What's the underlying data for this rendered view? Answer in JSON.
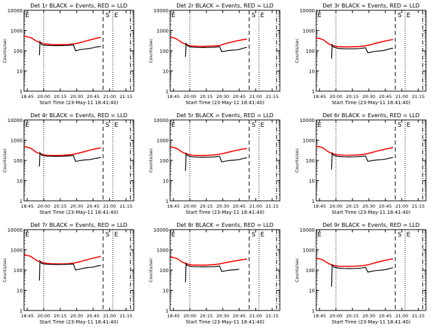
{
  "chart_data": [
    {
      "type": "line",
      "title": "Det 1r BLACK = Events, RED = LLD",
      "xlabel": "Start Time (23-May-11 18:41:40)",
      "ylabel": "Counts/sec",
      "x_ticks": [
        "18:45",
        "20:00",
        "20:15",
        "20:30",
        "20:45",
        "21:00",
        "21:15"
      ],
      "y_ticks": [
        "1",
        "10",
        "100",
        "1000",
        "10000"
      ],
      "ylim": [
        1,
        10000
      ],
      "log_y": true,
      "markers": [
        "S",
        "E"
      ],
      "series": [
        {
          "name": "LLD",
          "color": "#ff0000",
          "x": [
            0,
            3,
            6,
            8,
            10,
            12,
            15,
            18,
            20,
            25,
            30,
            35,
            40,
            45,
            50,
            55,
            60,
            65,
            70
          ],
          "values": [
            520,
            490,
            450,
            390,
            330,
            290,
            250,
            225,
            215,
            205,
            200,
            200,
            205,
            215,
            240,
            290,
            340,
            400,
            460
          ]
        },
        {
          "name": "Events",
          "color": "#000000",
          "x": [
            0,
            14,
            14.5,
            16,
            20,
            25,
            30,
            35,
            40,
            45,
            47,
            50,
            52,
            55,
            60,
            63,
            65,
            67,
            70
          ],
          "values": [
            null,
            60,
            280,
            200,
            185,
            180,
            178,
            180,
            182,
            195,
            100,
            110,
            115,
            120,
            130,
            140,
            150,
            155,
            165
          ]
        }
      ]
    },
    {
      "type": "line",
      "title": "Det 2r BLACK = Events, RED = LLD",
      "xlabel": "Start Time (23-May-11 18:41:40)",
      "ylabel": "Counts/sec",
      "x_ticks": [
        "18:45",
        "20:00",
        "20:15",
        "20:30",
        "20:45",
        "21:00",
        "21:15"
      ],
      "y_ticks": [
        "1",
        "10",
        "100",
        "1000",
        "10000"
      ],
      "ylim": [
        1,
        10000
      ],
      "log_y": true,
      "markers": [
        "S",
        "E"
      ],
      "series": [
        {
          "name": "LLD",
          "color": "#ff0000",
          "x": [
            0,
            3,
            6,
            8,
            10,
            12,
            15,
            18,
            20,
            25,
            30,
            35,
            40,
            45,
            50,
            55,
            60,
            65,
            70
          ],
          "values": [
            480,
            440,
            380,
            320,
            270,
            230,
            200,
            180,
            170,
            165,
            165,
            168,
            172,
            180,
            220,
            260,
            300,
            340,
            380
          ]
        },
        {
          "name": "Events",
          "color": "#000000",
          "x": [
            0,
            14,
            14.5,
            16,
            20,
            25,
            30,
            35,
            40,
            45,
            47,
            50,
            52,
            55,
            60,
            63,
            65,
            67,
            70
          ],
          "values": [
            null,
            50,
            230,
            170,
            150,
            145,
            143,
            145,
            148,
            160,
            90,
            95,
            100,
            105,
            110,
            115,
            125,
            135,
            145
          ]
        }
      ]
    },
    {
      "type": "line",
      "title": "Det 3r BLACK = Events, RED = LLD",
      "xlabel": "Start Time (23-May-11 18:41:40)",
      "ylabel": "Counts/sec",
      "x_ticks": [
        "18:45",
        "20:00",
        "20:15",
        "20:30",
        "20:45",
        "21:00",
        "21:15"
      ],
      "y_ticks": [
        "1",
        "10",
        "100",
        "1000",
        "10000"
      ],
      "ylim": [
        1,
        10000
      ],
      "log_y": true,
      "markers": [
        "S",
        "E"
      ],
      "series": [
        {
          "name": "LLD",
          "color": "#ff0000",
          "x": [
            0,
            3,
            6,
            8,
            10,
            12,
            15,
            18,
            20,
            25,
            30,
            35,
            40,
            45,
            50,
            55,
            60,
            65,
            70
          ],
          "values": [
            420,
            400,
            360,
            300,
            250,
            210,
            180,
            165,
            158,
            155,
            155,
            158,
            162,
            175,
            200,
            240,
            280,
            320,
            360
          ]
        },
        {
          "name": "Events",
          "color": "#000000",
          "x": [
            0,
            14,
            14.5,
            16,
            20,
            25,
            30,
            35,
            40,
            45,
            47,
            50,
            52,
            55,
            60,
            63,
            65,
            67,
            70
          ],
          "values": [
            null,
            40,
            200,
            150,
            130,
            125,
            123,
            125,
            128,
            140,
            80,
            85,
            90,
            95,
            100,
            108,
            115,
            125,
            135
          ]
        }
      ]
    },
    {
      "type": "line",
      "title": "Det 4r BLACK = Events, RED = LLD",
      "xlabel": "Start Time (23-May-11 18:41:40)",
      "ylabel": "Counts/sec",
      "x_ticks": [
        "18:45",
        "20:00",
        "20:15",
        "20:30",
        "20:45",
        "21:00",
        "21:15"
      ],
      "y_ticks": [
        "1",
        "10",
        "100",
        "1000",
        "10000"
      ],
      "ylim": [
        1,
        10000
      ],
      "log_y": true,
      "markers": [
        "S",
        "E"
      ],
      "series": [
        {
          "name": "LLD",
          "color": "#ff0000",
          "x": [
            0,
            3,
            6,
            8,
            10,
            12,
            15,
            18,
            20,
            25,
            30,
            35,
            40,
            45,
            50,
            55,
            60,
            65,
            70
          ],
          "values": [
            480,
            450,
            400,
            340,
            280,
            240,
            210,
            190,
            180,
            175,
            175,
            178,
            185,
            200,
            230,
            270,
            320,
            370,
            420
          ]
        },
        {
          "name": "Events",
          "color": "#000000",
          "x": [
            0,
            14,
            14.5,
            16,
            20,
            25,
            30,
            35,
            40,
            45,
            47,
            50,
            52,
            55,
            60,
            63,
            65,
            67,
            70
          ],
          "values": [
            null,
            50,
            240,
            180,
            165,
            160,
            158,
            160,
            165,
            175,
            90,
            95,
            100,
            105,
            110,
            118,
            125,
            130,
            140
          ]
        }
      ]
    },
    {
      "type": "line",
      "title": "Det 5r BLACK = Events, RED = LLD",
      "xlabel": "Start Time (23-May-11 18:41:40)",
      "ylabel": "Counts/sec",
      "x_ticks": [
        "18:45",
        "20:00",
        "20:15",
        "20:30",
        "20:45",
        "21:00",
        "21:15"
      ],
      "y_ticks": [
        "1",
        "10",
        "100",
        "1000",
        "10000"
      ],
      "ylim": [
        1,
        10000
      ],
      "log_y": true,
      "markers": [
        "S",
        "E"
      ],
      "series": [
        {
          "name": "LLD",
          "color": "#ff0000",
          "x": [
            0,
            3,
            6,
            8,
            10,
            12,
            15,
            18,
            20,
            25,
            30,
            35,
            40,
            45,
            50,
            55,
            60,
            65,
            70
          ],
          "values": [
            470,
            440,
            390,
            330,
            280,
            240,
            210,
            190,
            180,
            175,
            175,
            178,
            185,
            200,
            230,
            270,
            310,
            350,
            390
          ]
        },
        {
          "name": "Events",
          "color": "#000000",
          "x": [
            0,
            14,
            14.5,
            16,
            20,
            25,
            30,
            35,
            40,
            45,
            47,
            50,
            52,
            55,
            60,
            63,
            65,
            67,
            70
          ],
          "values": [
            null,
            30,
            220,
            170,
            150,
            145,
            143,
            145,
            148,
            160,
            85,
            90,
            95,
            100,
            105,
            110,
            118,
            125,
            135
          ]
        }
      ]
    },
    {
      "type": "line",
      "title": "Det 6r BLACK = Events, RED = LLD",
      "xlabel": "Start Time (23-May-11 18:41:40)",
      "ylabel": "Counts/sec",
      "x_ticks": [
        "18:45",
        "20:00",
        "20:15",
        "20:30",
        "20:45",
        "21:00",
        "21:15"
      ],
      "y_ticks": [
        "1",
        "10",
        "100",
        "1000",
        "10000"
      ],
      "ylim": [
        1,
        10000
      ],
      "log_y": true,
      "markers": [
        "S",
        "E"
      ],
      "series": [
        {
          "name": "LLD",
          "color": "#ff0000",
          "x": [
            0,
            3,
            6,
            8,
            10,
            12,
            15,
            18,
            20,
            25,
            30,
            35,
            40,
            45,
            50,
            55,
            60,
            65,
            70
          ],
          "values": [
            500,
            470,
            420,
            350,
            290,
            250,
            215,
            195,
            185,
            180,
            180,
            183,
            190,
            205,
            240,
            285,
            330,
            380,
            430
          ]
        },
        {
          "name": "Events",
          "color": "#000000",
          "x": [
            0,
            14,
            14.5,
            16,
            20,
            25,
            30,
            35,
            40,
            45,
            47,
            50,
            52,
            55,
            60,
            63,
            65,
            67,
            70
          ],
          "values": [
            null,
            35,
            230,
            175,
            155,
            150,
            148,
            150,
            155,
            165,
            90,
            95,
            100,
            105,
            110,
            115,
            122,
            130,
            140
          ]
        }
      ]
    },
    {
      "type": "line",
      "title": "Det 7r BLACK = Events, RED = LLD",
      "xlabel": "Start Time (23-May-11 18:41:40)",
      "ylabel": "Counts/sec",
      "x_ticks": [
        "18:45",
        "20:00",
        "20:15",
        "20:30",
        "20:45",
        "21:00",
        "21:15"
      ],
      "y_ticks": [
        "1",
        "10",
        "100",
        "1000",
        "10000"
      ],
      "ylim": [
        1,
        10000
      ],
      "log_y": true,
      "markers": [
        "S",
        "E"
      ],
      "series": [
        {
          "name": "LLD",
          "color": "#ff0000",
          "x": [
            0,
            3,
            6,
            8,
            10,
            12,
            15,
            18,
            20,
            25,
            30,
            35,
            40,
            45,
            50,
            55,
            60,
            65,
            70
          ],
          "values": [
            560,
            530,
            480,
            400,
            340,
            290,
            255,
            230,
            215,
            205,
            200,
            200,
            205,
            220,
            250,
            300,
            350,
            410,
            470
          ]
        },
        {
          "name": "Events",
          "color": "#000000",
          "x": [
            0,
            14,
            14.5,
            16,
            20,
            25,
            30,
            35,
            40,
            45,
            47,
            50,
            52,
            55,
            60,
            63,
            65,
            67,
            70
          ],
          "values": [
            null,
            30,
            280,
            210,
            195,
            190,
            188,
            190,
            192,
            200,
            100,
            110,
            115,
            125,
            135,
            140,
            150,
            160,
            170
          ]
        }
      ]
    },
    {
      "type": "line",
      "title": "Det 8r BLACK = Events, RED = LLD",
      "xlabel": "Start Time (23-May-11 18:41:40)",
      "ylabel": "Counts/sec",
      "x_ticks": [
        "18:45",
        "20:00",
        "20:15",
        "20:30",
        "20:45",
        "21:00",
        "21:15"
      ],
      "y_ticks": [
        "1",
        "10",
        "100",
        "1000",
        "10000"
      ],
      "ylim": [
        1,
        10000
      ],
      "log_y": true,
      "markers": [
        "S",
        "E"
      ],
      "series": [
        {
          "name": "LLD",
          "color": "#ff0000",
          "x": [
            0,
            3,
            6,
            8,
            10,
            12,
            15,
            18,
            20,
            25,
            30,
            35,
            40,
            45,
            50,
            55,
            60,
            65,
            70
          ],
          "values": [
            450,
            420,
            380,
            320,
            270,
            235,
            205,
            185,
            178,
            175,
            175,
            178,
            185,
            200,
            230,
            260,
            290,
            320,
            350
          ]
        },
        {
          "name": "Events",
          "color": "#000000",
          "x": [
            0,
            14,
            14.5,
            16,
            20,
            25,
            30,
            35,
            40,
            45,
            47,
            50,
            52,
            55,
            60,
            63,
            65,
            67,
            70
          ],
          "values": [
            null,
            25,
            210,
            165,
            150,
            145,
            143,
            145,
            148,
            158,
            85,
            90,
            95,
            100,
            105,
            110,
            null,
            null,
            null
          ]
        }
      ]
    },
    {
      "type": "line",
      "title": "Det 9r BLACK = Events, RED = LLD",
      "xlabel": "Start Time (23-May-11 18:41:40)",
      "ylabel": "Counts/sec",
      "x_ticks": [
        "18:45",
        "20:00",
        "20:15",
        "20:30",
        "20:45",
        "21:00",
        "21:15"
      ],
      "y_ticks": [
        "1",
        "10",
        "100",
        "1000",
        "10000"
      ],
      "ylim": [
        1,
        10000
      ],
      "log_y": true,
      "markers": [
        "S",
        "E"
      ],
      "series": [
        {
          "name": "LLD",
          "color": "#ff0000",
          "x": [
            0,
            3,
            6,
            8,
            10,
            12,
            15,
            18,
            20,
            25,
            30,
            35,
            40,
            45,
            50,
            55,
            60,
            65,
            70
          ],
          "values": [
            380,
            360,
            320,
            270,
            230,
            200,
            175,
            160,
            155,
            153,
            153,
            155,
            160,
            172,
            200,
            240,
            280,
            320,
            360
          ]
        },
        {
          "name": "Events",
          "color": "#000000",
          "x": [
            0,
            14,
            14.5,
            16,
            20,
            25,
            30,
            35,
            40,
            45,
            47,
            50,
            52,
            55,
            60,
            63,
            65,
            67,
            70
          ],
          "values": [
            null,
            15,
            180,
            140,
            125,
            120,
            118,
            120,
            123,
            135,
            80,
            85,
            90,
            95,
            100,
            105,
            112,
            120,
            130
          ]
        }
      ]
    }
  ]
}
